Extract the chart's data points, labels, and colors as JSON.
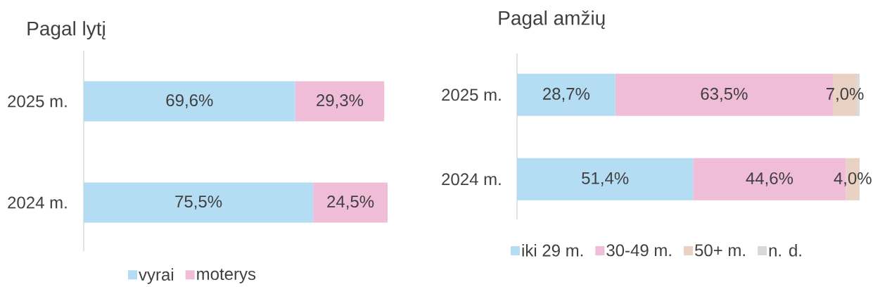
{
  "chart_data": [
    {
      "type": "bar",
      "orientation": "horizontal",
      "stacked": true,
      "title": "Pagal lytį",
      "categories": [
        "2025 m.",
        "2024 m."
      ],
      "series": [
        {
          "name": "vyrai",
          "color": "#b4dcf3",
          "values": [
            69.6,
            75.5
          ],
          "value_labels": [
            "69,6%",
            "75,5%"
          ]
        },
        {
          "name": "moterys",
          "color": "#f0bdd9",
          "values": [
            29.3,
            24.5
          ],
          "value_labels": [
            "29,3%",
            "24,5%"
          ]
        }
      ],
      "xlim": [
        0,
        100
      ],
      "tick_labels": "y",
      "legend": "bottom"
    },
    {
      "type": "bar",
      "orientation": "horizontal",
      "stacked": true,
      "title": "Pagal amžių",
      "categories": [
        "2025 m.",
        "2024 m."
      ],
      "series": [
        {
          "name": "iki 29 m.",
          "color": "#b4dcf3",
          "values": [
            28.7,
            51.4
          ],
          "value_labels": [
            "28,7%",
            "51,4%"
          ]
        },
        {
          "name": "30-49 m.",
          "color": "#f0bdd9",
          "values": [
            63.5,
            44.6
          ],
          "value_labels": [
            "63,5%",
            "44,6%"
          ]
        },
        {
          "name": "50+ m.",
          "color": "#e9d1c4",
          "values": [
            7.0,
            4.0
          ],
          "value_labels": [
            "7,0%",
            "4,0%"
          ]
        },
        {
          "name": "n. d.",
          "color": "#d9d9d9",
          "values": [
            0.8,
            null
          ]
        }
      ],
      "xlim": [
        0,
        100
      ],
      "tick_labels": "y",
      "legend": "bottom"
    }
  ]
}
